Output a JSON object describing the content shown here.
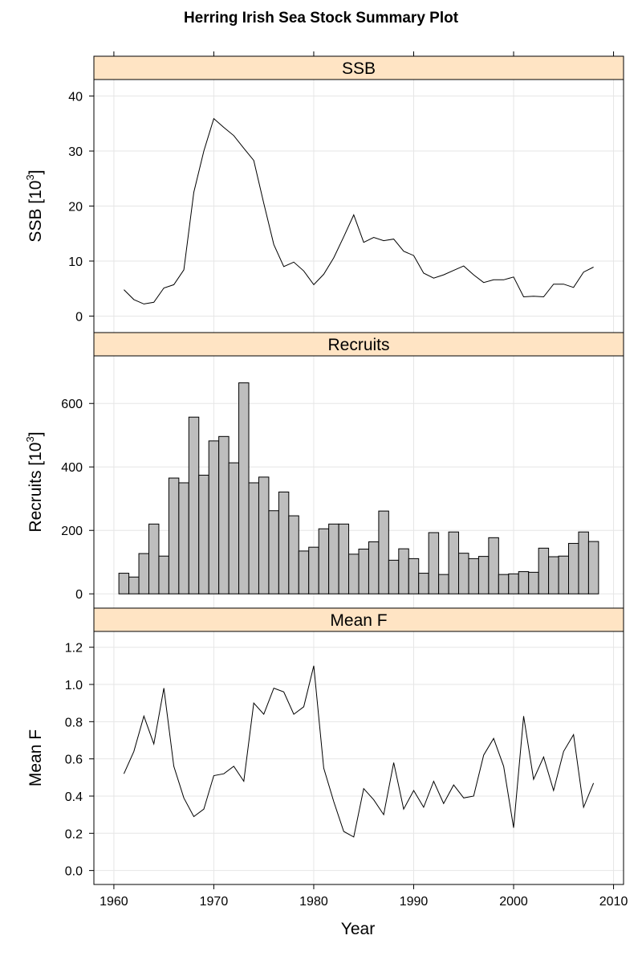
{
  "chart_data": {
    "type": "line",
    "title": "Herring Irish Sea Stock Summary Plot",
    "xlabel": "Year",
    "xlim": [
      1958,
      2011
    ],
    "x_ticks": [
      1960,
      1970,
      1980,
      1990,
      2000,
      2010
    ],
    "grid": true,
    "panels": [
      {
        "name": "SSB",
        "type": "line",
        "ylabel_main": "SSB [10",
        "ylabel_sup": "3",
        "ylabel_close": "]",
        "ylim": [
          -3,
          43
        ],
        "y_ticks": [
          0,
          10,
          20,
          30,
          40
        ],
        "x": [
          1961,
          1962,
          1963,
          1964,
          1965,
          1966,
          1967,
          1968,
          1969,
          1970,
          1971,
          1972,
          1973,
          1974,
          1975,
          1976,
          1977,
          1978,
          1979,
          1980,
          1981,
          1982,
          1983,
          1984,
          1985,
          1986,
          1987,
          1988,
          1989,
          1990,
          1991,
          1992,
          1993,
          1994,
          1995,
          1996,
          1997,
          1998,
          1999,
          2000,
          2001,
          2002,
          2003,
          2004,
          2005,
          2006,
          2007,
          2008
        ],
        "values": [
          4.8,
          3.0,
          2.2,
          2.5,
          5.1,
          5.7,
          8.4,
          22.5,
          30.0,
          35.9,
          34.3,
          32.8,
          30.5,
          28.3,
          20.5,
          13.0,
          9.0,
          9.8,
          8.2,
          5.7,
          7.6,
          10.6,
          14.4,
          18.4,
          13.4,
          14.3,
          13.7,
          14.0,
          11.8,
          11.0,
          7.8,
          6.9,
          7.5,
          8.3,
          9.1,
          7.5,
          6.1,
          6.6,
          6.6,
          7.1,
          3.5,
          3.6,
          3.5,
          5.8,
          5.8,
          5.2,
          8.0,
          8.9
        ]
      },
      {
        "name": "Recruits",
        "type": "bar",
        "ylabel_main": "Recruits [10",
        "ylabel_sup": "3",
        "ylabel_close": "]",
        "ylim": [
          -45,
          750
        ],
        "y_ticks": [
          0,
          200,
          400,
          600
        ],
        "x": [
          1961,
          1962,
          1963,
          1964,
          1965,
          1966,
          1967,
          1968,
          1969,
          1970,
          1971,
          1972,
          1973,
          1974,
          1975,
          1976,
          1977,
          1978,
          1979,
          1980,
          1981,
          1982,
          1983,
          1984,
          1985,
          1986,
          1987,
          1988,
          1989,
          1990,
          1991,
          1992,
          1993,
          1994,
          1995,
          1996,
          1997,
          1998,
          1999,
          2000,
          2001,
          2002,
          2003,
          2004,
          2005,
          2006,
          2007,
          2008
        ],
        "values": [
          65,
          53,
          127,
          220,
          119,
          365,
          350,
          557,
          374,
          482,
          496,
          413,
          665,
          350,
          368,
          262,
          321,
          246,
          135,
          147,
          205,
          220,
          220,
          125,
          141,
          164,
          261,
          106,
          142,
          111,
          65,
          193,
          61,
          195,
          128,
          111,
          118,
          177,
          61,
          63,
          70,
          68,
          144,
          117,
          119,
          159,
          195,
          165
        ]
      },
      {
        "name": "Mean F",
        "type": "line",
        "ylabel_main": "Mean F",
        "ylabel_sup": "",
        "ylabel_close": "",
        "ylim": [
          -0.075,
          1.285
        ],
        "y_ticks": [
          0.0,
          0.2,
          0.4,
          0.6,
          0.8,
          1.0,
          1.2
        ],
        "y_tick_labels": [
          "0.0",
          "0.2",
          "0.4",
          "0.6",
          "0.8",
          "1.0",
          "1.2"
        ],
        "x": [
          1961,
          1962,
          1963,
          1964,
          1965,
          1966,
          1967,
          1968,
          1969,
          1970,
          1971,
          1972,
          1973,
          1974,
          1975,
          1976,
          1977,
          1978,
          1979,
          1980,
          1981,
          1982,
          1983,
          1984,
          1985,
          1986,
          1987,
          1988,
          1989,
          1990,
          1991,
          1992,
          1993,
          1994,
          1995,
          1996,
          1997,
          1998,
          1999,
          2000,
          2001,
          2002,
          2003,
          2004,
          2005,
          2006,
          2007,
          2008
        ],
        "values": [
          0.52,
          0.64,
          0.83,
          0.68,
          0.98,
          0.56,
          0.39,
          0.29,
          0.33,
          0.51,
          0.52,
          0.56,
          0.48,
          0.9,
          0.84,
          0.98,
          0.96,
          0.84,
          0.88,
          1.1,
          0.55,
          0.37,
          0.21,
          0.18,
          0.44,
          0.38,
          0.3,
          0.58,
          0.33,
          0.43,
          0.34,
          0.48,
          0.36,
          0.46,
          0.39,
          0.4,
          0.62,
          0.71,
          0.56,
          0.23,
          0.83,
          0.49,
          0.61,
          0.43,
          0.64,
          0.73,
          0.34,
          0.47
        ]
      }
    ],
    "colors": {
      "strip_fill": "#ffe4c4",
      "bar_fill": "#bebebe",
      "grid": "#e6e6e6",
      "line": "#000000"
    }
  }
}
